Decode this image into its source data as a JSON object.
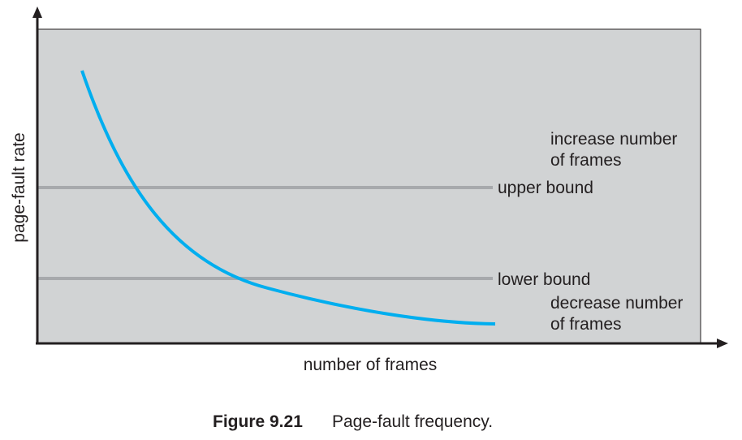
{
  "diagram": {
    "y_axis_label": "page-fault rate",
    "x_axis_label": "number of frames",
    "upper_bound_label": "upper bound",
    "lower_bound_label": "lower bound",
    "increase_label_line1": "increase number",
    "increase_label_line2": "of frames",
    "decrease_label_line1": "decrease number",
    "decrease_label_line2": "of frames"
  },
  "caption": {
    "number": "Figure 9.21",
    "text": "Page-fault frequency."
  },
  "colors": {
    "plot_background": "#d1d3d4",
    "curve": "#00aeef",
    "bound_lines": "#a7a9ac",
    "axes": "#231f20"
  }
}
